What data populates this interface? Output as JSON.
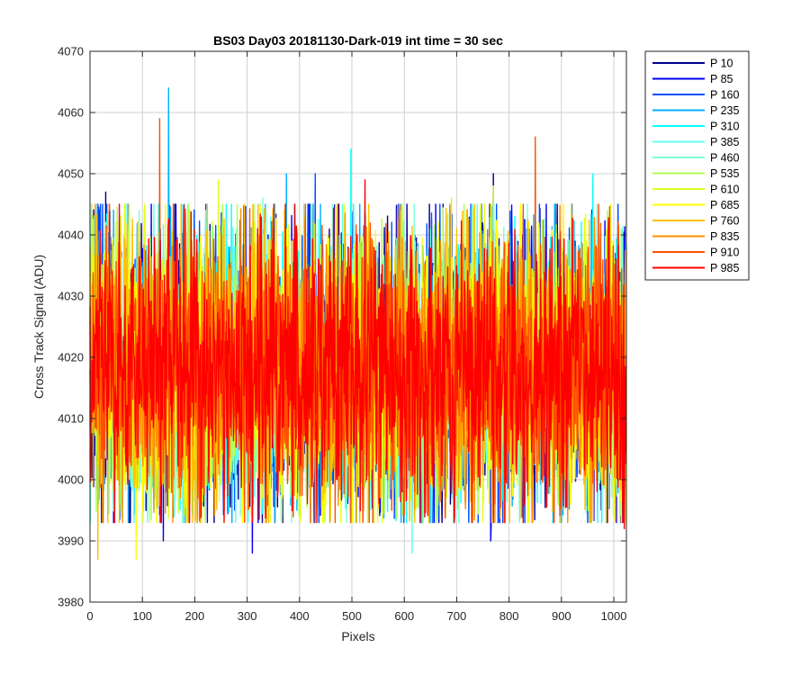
{
  "chart_data": {
    "type": "line",
    "title": "BS03 Day03 20181130-Dark-019 int time = 30 sec",
    "xlabel": "Pixels",
    "ylabel": "Cross Track Signal (ADU)",
    "xlim": [
      0,
      1024
    ],
    "ylim": [
      3980,
      4070
    ],
    "xticks": [
      0,
      100,
      200,
      300,
      400,
      500,
      600,
      700,
      800,
      900,
      1000
    ],
    "yticks": [
      3980,
      3990,
      4000,
      4010,
      4020,
      4030,
      4040,
      4050,
      4060,
      4070
    ],
    "grid": true,
    "legend_position": "outside-top-right",
    "points_per_series": 1024,
    "typical_mean": 4018,
    "typical_spread": [
      3996,
      4042
    ],
    "series": [
      {
        "name": "P 10",
        "color": "#00008f",
        "peaks": [
          [
            30,
            4047
          ],
          [
            770,
            4050
          ]
        ]
      },
      {
        "name": "P 85",
        "color": "#0000ef",
        "peaks": [
          [
            140,
            3990
          ],
          [
            310,
            3988
          ],
          [
            765,
            3990
          ]
        ]
      },
      {
        "name": "P 160",
        "color": "#004fff",
        "peaks": [
          [
            20,
            4045
          ],
          [
            430,
            4050
          ]
        ]
      },
      {
        "name": "P 235",
        "color": "#00afff",
        "peaks": [
          [
            150,
            4064
          ],
          [
            375,
            4050
          ]
        ]
      },
      {
        "name": "P 310",
        "color": "#0fffff",
        "peaks": [
          [
            498,
            4054
          ],
          [
            960,
            4050
          ]
        ]
      },
      {
        "name": "P 385",
        "color": "#5fffef",
        "peaks": [
          [
            615,
            3988
          ]
        ]
      },
      {
        "name": "P 460",
        "color": "#7fffd5",
        "peaks": [
          [
            330,
            4046
          ]
        ]
      },
      {
        "name": "P 535",
        "color": "#afff4f",
        "peaks": [
          [
            690,
            4046
          ]
        ]
      },
      {
        "name": "P 610",
        "color": "#dfff1f",
        "peaks": [
          [
            245,
            4049
          ],
          [
            770,
            4048
          ]
        ]
      },
      {
        "name": "P 685",
        "color": "#ffff00",
        "peaks": [
          [
            88,
            3987
          ],
          [
            765,
            4045
          ]
        ]
      },
      {
        "name": "P 760",
        "color": "#ffbf00",
        "peaks": [
          [
            15,
            3987
          ]
        ]
      },
      {
        "name": "P 835",
        "color": "#ff8f00",
        "peaks": [
          [
            210,
            3993
          ]
        ]
      },
      {
        "name": "P 910",
        "color": "#ff4f00",
        "peaks": [
          [
            133,
            4059
          ],
          [
            850,
            4056
          ]
        ]
      },
      {
        "name": "P 985",
        "color": "#ff0000",
        "peaks": [
          [
            525,
            4049
          ],
          [
            1020,
            3992
          ]
        ]
      }
    ]
  }
}
